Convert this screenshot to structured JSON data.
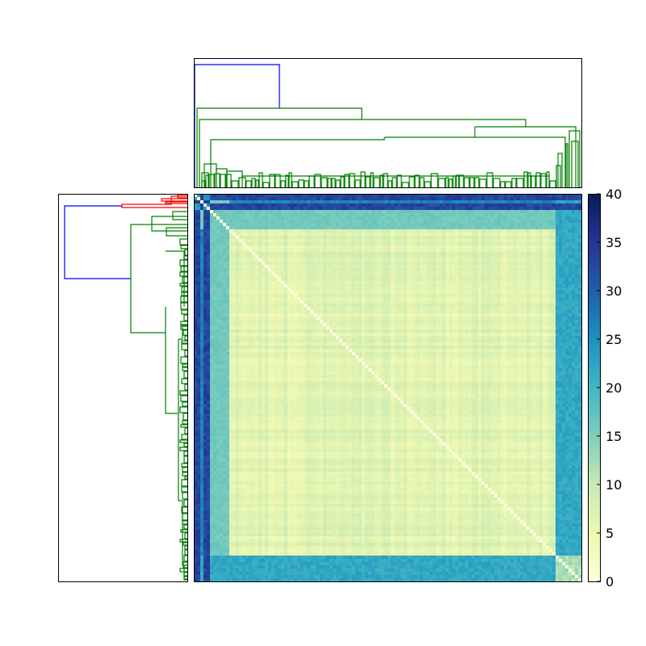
{
  "chart_data": {
    "type": "heatmap",
    "title": "",
    "xlabel": "",
    "ylabel": "",
    "colorbar": {
      "min": 0,
      "max": 40,
      "ticks": [
        0,
        5,
        10,
        15,
        20,
        25,
        30,
        35,
        40
      ],
      "tick_labels": [
        "0",
        "5",
        "10",
        "15",
        "20",
        "25",
        "30",
        "35",
        "40"
      ],
      "colormap": "YlGnBu",
      "stops": [
        "#ffffd9",
        "#edf8b1",
        "#c7e9b4",
        "#7fcdbb",
        "#41b6c4",
        "#1d91c0",
        "#225ea8",
        "#253494",
        "#081d58"
      ]
    },
    "dendrogram_colors": {
      "root": "#0000ff",
      "cluster_a": "#008000",
      "cluster_b": "#ff0000"
    },
    "matrix": {
      "n": 120,
      "base_level": 5,
      "outlier_rows_cols": [
        0,
        1,
        3,
        4
      ],
      "secondary_bands": [
        5,
        6,
        7,
        8,
        9,
        10
      ],
      "right_block_cols": [
        112,
        113,
        114,
        115,
        116,
        117,
        118,
        119
      ],
      "levels": {
        "outlier": 33,
        "outlier_cross": 24,
        "band": 16,
        "right_block": 22,
        "left_cols": 25
      }
    }
  }
}
